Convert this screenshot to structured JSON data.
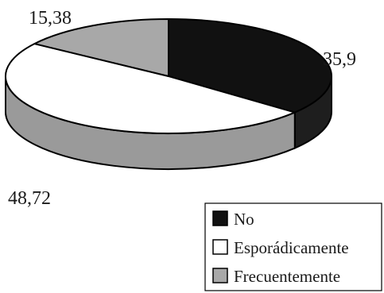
{
  "chart_data": {
    "type": "pie",
    "style": "3d",
    "title": "",
    "slices": [
      {
        "label": "No",
        "value": 35.9,
        "display": "35,9",
        "color": "#111111"
      },
      {
        "label": "Esporádicamente",
        "value": 48.72,
        "display": "48,72",
        "color": "#ffffff"
      },
      {
        "label": "Frecuentemente",
        "value": 15.38,
        "display": "15,38",
        "color": "#a8a8a8"
      }
    ],
    "legend_position": "bottom-right"
  }
}
